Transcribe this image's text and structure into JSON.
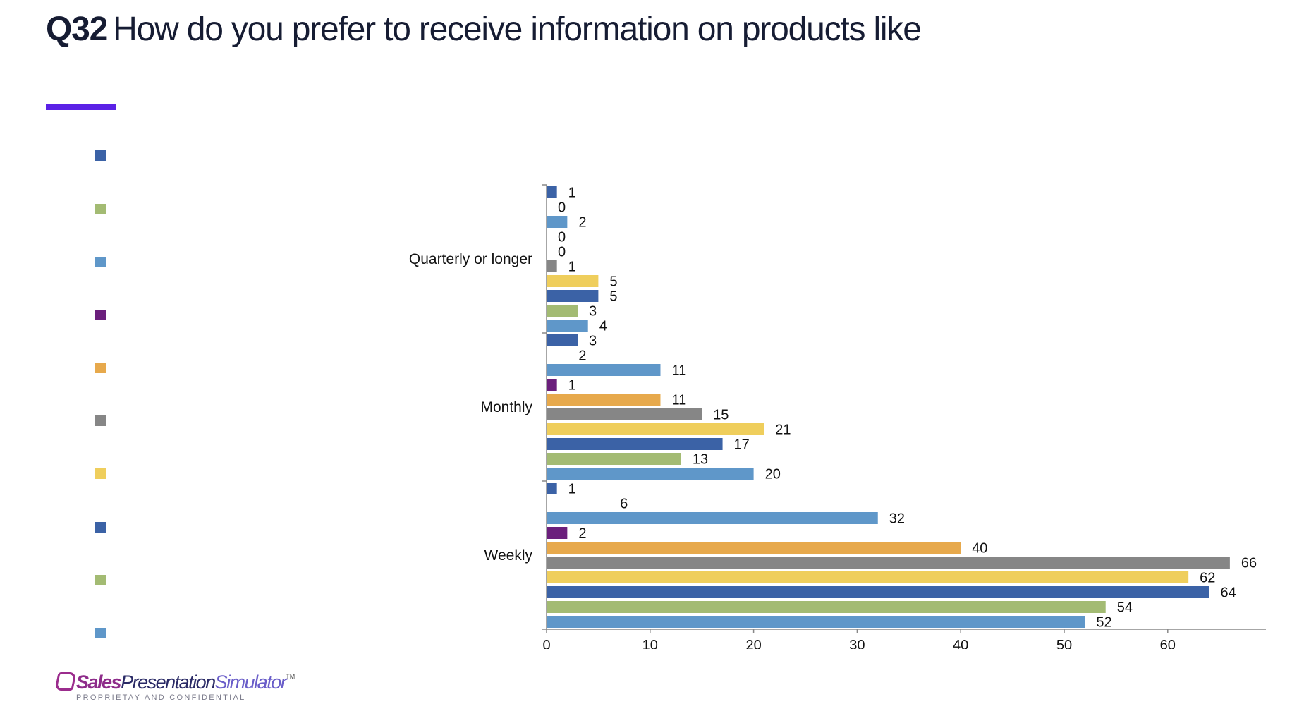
{
  "header": {
    "question_number": "Q32",
    "question_text": "How do you prefer to receive information on products like"
  },
  "accent_color": "#5b21e6",
  "legend": {
    "swatch_colors": [
      "#3b62a6",
      "#a3bb73",
      "#5f97c9",
      "#6b1f7c",
      "#e7a94c",
      "#868686",
      "#efce5c",
      "#3b62a6",
      "#a3bb73",
      "#5f97c9"
    ]
  },
  "chart_data": {
    "type": "bar",
    "orientation": "horizontal",
    "categories": [
      "Quarterly or longer",
      "Monthly",
      "Weekly"
    ],
    "series": [
      {
        "name": "",
        "color": "#3b62a6",
        "values": [
          1,
          3,
          1
        ]
      },
      {
        "name": "",
        "color": "#ffffff",
        "values": [
          0,
          2,
          6
        ]
      },
      {
        "name": "",
        "color": "#5f97c9",
        "values": [
          2,
          11,
          32
        ]
      },
      {
        "name": "",
        "color": "#6b1f7c",
        "values": [
          0,
          1,
          2
        ]
      },
      {
        "name": "",
        "color": "#e7a94c",
        "values": [
          0,
          11,
          40
        ]
      },
      {
        "name": "",
        "color": "#868686",
        "values": [
          1,
          15,
          66
        ]
      },
      {
        "name": "",
        "color": "#efce5c",
        "values": [
          5,
          21,
          62
        ]
      },
      {
        "name": "",
        "color": "#3b62a6",
        "values": [
          5,
          17,
          64
        ]
      },
      {
        "name": "",
        "color": "#a3bb73",
        "values": [
          3,
          13,
          54
        ]
      },
      {
        "name": "",
        "color": "#5f97c9",
        "values": [
          4,
          20,
          52
        ]
      }
    ],
    "xlim": [
      0,
      70
    ],
    "xticks": [
      0,
      10,
      20,
      30,
      40,
      50,
      60
    ],
    "grid": false,
    "data_labels": true
  },
  "footer": {
    "brand_part1": "Sales",
    "brand_part2": "Presentation",
    "brand_part3": "Simulator",
    "trademark": "TM",
    "tagline": "PROPRIETAY AND CONFIDENTIAL"
  }
}
